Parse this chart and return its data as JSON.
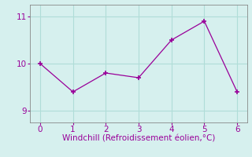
{
  "x": [
    0,
    1,
    2,
    3,
    4,
    5,
    6
  ],
  "y": [
    10.0,
    9.4,
    9.8,
    9.7,
    10.5,
    10.9,
    9.4
  ],
  "line_color": "#990099",
  "marker": "+",
  "marker_color": "#990099",
  "bg_color": "#d6f0ee",
  "grid_color": "#b0ddd8",
  "axis_color": "#888888",
  "xlabel": "Windchill (Refroidissement éolien,°C)",
  "xlabel_color": "#990099",
  "tick_color": "#990099",
  "xlim": [
    -0.3,
    6.3
  ],
  "ylim": [
    8.75,
    11.25
  ],
  "yticks": [
    9,
    10,
    11
  ],
  "xticks": [
    0,
    1,
    2,
    3,
    4,
    5,
    6
  ],
  "xlabel_fontsize": 7.5,
  "tick_fontsize": 7.5
}
